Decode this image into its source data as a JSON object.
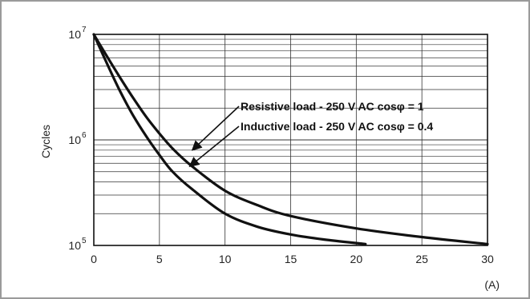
{
  "chart_data": {
    "type": "line",
    "title": "",
    "xlabel": "(A)",
    "ylabel": "Cycles",
    "xlim": [
      0,
      30
    ],
    "ylim": [
      100000,
      10000000
    ],
    "yscale": "log",
    "grid": true,
    "x_ticks": [
      "0",
      "5",
      "10",
      "15",
      "20",
      "25",
      "30"
    ],
    "y_ticks": [
      {
        "base": "10",
        "exp": "7",
        "value": 10000000
      },
      {
        "base": "10",
        "exp": "6",
        "value": 1000000
      },
      {
        "base": "10",
        "exp": "5",
        "value": 100000
      }
    ],
    "series": [
      {
        "name": "Resistive load - 250 V AC cosφ = 1",
        "x": [
          0,
          1,
          2,
          3,
          4,
          5,
          6,
          7.5,
          10,
          12.5,
          15,
          20,
          25,
          30
        ],
        "y": [
          10000000,
          6200000,
          3900000,
          2500000,
          1650000,
          1150000,
          830000,
          560000,
          330000,
          240000,
          190000,
          145000,
          120000,
          103000
        ]
      },
      {
        "name": "Inductive load - 250 V AC cosφ = 0.4",
        "x": [
          0,
          1,
          2,
          3,
          4,
          5,
          6,
          7.5,
          10,
          12.5,
          15,
          17.5,
          20.7
        ],
        "y": [
          10000000,
          5300000,
          2900000,
          1700000,
          1080000,
          720000,
          500000,
          340000,
          200000,
          150000,
          127000,
          114000,
          103000
        ]
      }
    ],
    "annotations": [
      {
        "text": "Resistive load - 250 V AC cosφ = 1",
        "x": 7.5,
        "y": 800000
      },
      {
        "text": "Inductive load - 250 V AC cosφ = 0.4",
        "x": 7.3,
        "y": 560000
      }
    ],
    "line_color": "#111111",
    "grid_color": "#333333"
  }
}
